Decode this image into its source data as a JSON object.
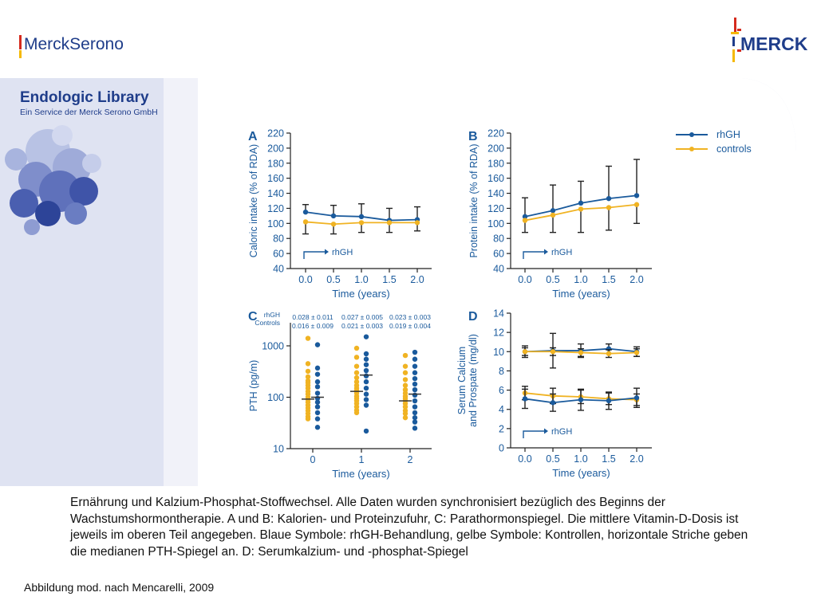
{
  "header": {
    "left_logo": "MerckSerono",
    "right_logo": "MERCK",
    "library_title": "Endologic Library",
    "library_subtitle": "Ein Service der Merck Serono GmbH"
  },
  "colors": {
    "rhgh": "#1a5a9c",
    "controls": "#f0b323",
    "axis": "#222222",
    "banner": "#dfe3f2",
    "logo_blue": "#1f3d8a",
    "merck_red": "#d52b1e",
    "merck_yellow": "#f5b800"
  },
  "legend": [
    {
      "label": "rhGH",
      "color": "#1a5a9c"
    },
    {
      "label": "controls",
      "color": "#f0b323"
    }
  ],
  "chart_data": [
    {
      "panel": "A",
      "type": "line",
      "ylabel": "Caloric intake (% of RDA)",
      "xlabel": "Time (years)",
      "ylim": [
        40,
        220
      ],
      "yticks": [
        "220",
        "200",
        "180",
        "160",
        "140",
        "120",
        "100",
        "80",
        "60",
        "40"
      ],
      "xticks": [
        "0.0",
        "0.5",
        "1.0",
        "1.5",
        "2.0"
      ],
      "x": [
        0.0,
        0.5,
        1.0,
        1.5,
        2.0
      ],
      "marker_label": "rhGH",
      "series": [
        {
          "name": "rhGH",
          "values": [
            115,
            110,
            109,
            104,
            105
          ],
          "err_upper": [
            125,
            124,
            126,
            120,
            122
          ]
        },
        {
          "name": "controls",
          "values": [
            102,
            99,
            101,
            101,
            101
          ],
          "err_lower": [
            86,
            86,
            88,
            88,
            90
          ]
        }
      ]
    },
    {
      "panel": "B",
      "type": "line",
      "ylabel": "Protein intake (% of RDA)",
      "xlabel": "Time (years)",
      "ylim": [
        40,
        220
      ],
      "yticks": [
        "220",
        "200",
        "180",
        "160",
        "140",
        "120",
        "100",
        "80",
        "60",
        "40"
      ],
      "xticks": [
        "0.0",
        "0.5",
        "1.0",
        "1.5",
        "2.0"
      ],
      "x": [
        0.0,
        0.5,
        1.0,
        1.5,
        2.0
      ],
      "marker_label": "rhGH",
      "series": [
        {
          "name": "rhGH",
          "values": [
            109,
            117,
            127,
            133,
            137
          ],
          "err_upper": [
            134,
            151,
            156,
            176,
            185
          ]
        },
        {
          "name": "controls",
          "values": [
            104,
            111,
            119,
            121,
            125
          ],
          "err_lower": [
            88,
            88,
            88,
            91,
            100
          ]
        }
      ]
    },
    {
      "panel": "C",
      "type": "scatter",
      "ylabel": "PTH (pg/m)",
      "xlabel": "Time (years)",
      "yscale": "log",
      "ylim": [
        10,
        2000
      ],
      "yticks": [
        "1000",
        "100",
        "10"
      ],
      "xticks": [
        "0",
        "1",
        "2"
      ],
      "header_labels": [
        "rhGH",
        "Controls"
      ],
      "vitd_rhgh": [
        "0.028 ± 0.011",
        "0.027 ± 0.005",
        "0.023 ± 0.003"
      ],
      "vitd_controls": [
        "0.016 ± 0.009",
        "0.021 ± 0.003",
        "0.019 ± 0.004"
      ],
      "controls_points": [
        [
          1400,
          450,
          320,
          250,
          210,
          190,
          170,
          150,
          130,
          115,
          100,
          90,
          80,
          70,
          62,
          55,
          48,
          42,
          38
        ],
        [
          900,
          600,
          400,
          300,
          240,
          200,
          170,
          150,
          135,
          120,
          105,
          95,
          85,
          75,
          65,
          56,
          50
        ],
        [
          650,
          400,
          300,
          220,
          170,
          140,
          120,
          105,
          95,
          85,
          75,
          65,
          55,
          48,
          40
        ]
      ],
      "rhgh_points": [
        [
          1050,
          370,
          280,
          200,
          160,
          120,
          95,
          80,
          65,
          50,
          38,
          26
        ],
        [
          1500,
          700,
          550,
          430,
          330,
          260,
          200,
          150,
          115,
          90,
          70,
          22
        ],
        [
          750,
          550,
          400,
          300,
          230,
          180,
          140,
          110,
          85,
          65,
          50,
          40,
          33,
          25
        ]
      ],
      "medians_controls": [
        92,
        130,
        85
      ],
      "medians_rhgh": [
        100,
        270,
        115
      ]
    },
    {
      "panel": "D",
      "type": "line",
      "ylabel": "Serum Calcium and Prospate (mg/dl)",
      "xlabel": "Time (years)",
      "ylim": [
        0,
        14
      ],
      "yticks": [
        "14",
        "12",
        "10",
        "8",
        "6",
        "4",
        "2",
        "0"
      ],
      "xticks": [
        "0.0",
        "0.5",
        "1.0",
        "1.5",
        "2.0"
      ],
      "x": [
        0.0,
        0.5,
        1.0,
        1.5,
        2.0
      ],
      "marker_label": "rhGH",
      "series": [
        {
          "name": "rhGH calcium",
          "values": [
            10.0,
            10.1,
            10.1,
            10.3,
            10.0
          ],
          "err": [
            0.6,
            1.8,
            0.7,
            0.5,
            0.5
          ]
        },
        {
          "name": "controls calcium",
          "values": [
            10.0,
            10.0,
            9.9,
            9.8,
            9.9
          ],
          "err": [
            0.4,
            0.4,
            0.4,
            0.4,
            0.4
          ]
        },
        {
          "name": "controls phosphate",
          "values": [
            5.7,
            5.4,
            5.3,
            5.1,
            5.0
          ],
          "err": [
            0.7,
            0.8,
            0.7,
            0.6,
            0.6
          ]
        },
        {
          "name": "rhGH phosphate",
          "values": [
            5.1,
            4.7,
            5.0,
            4.9,
            5.2
          ],
          "err": [
            1.0,
            0.9,
            1.1,
            0.9,
            1.0
          ]
        }
      ]
    }
  ],
  "caption": "Ernährung und Kalzium-Phosphat-Stoffwechsel. Alle Daten wurden synchronisiert bezüglich des Beginns der Wachstumshormontherapie. A und B: Kalorien- und Proteinzufuhr, C: Parathormonspiegel. Die mittlere Vitamin-D-Dosis ist jeweils im oberen Teil angegeben. Blaue Symbole: rhGH-Behandlung, gelbe Symbole: Kontrollen, horizontale Striche geben die medianen PTH-Spiegel an. D: Serumkalzium- und -phosphat-Spiegel",
  "source": "Abbildung mod. nach Mencarelli, 2009"
}
